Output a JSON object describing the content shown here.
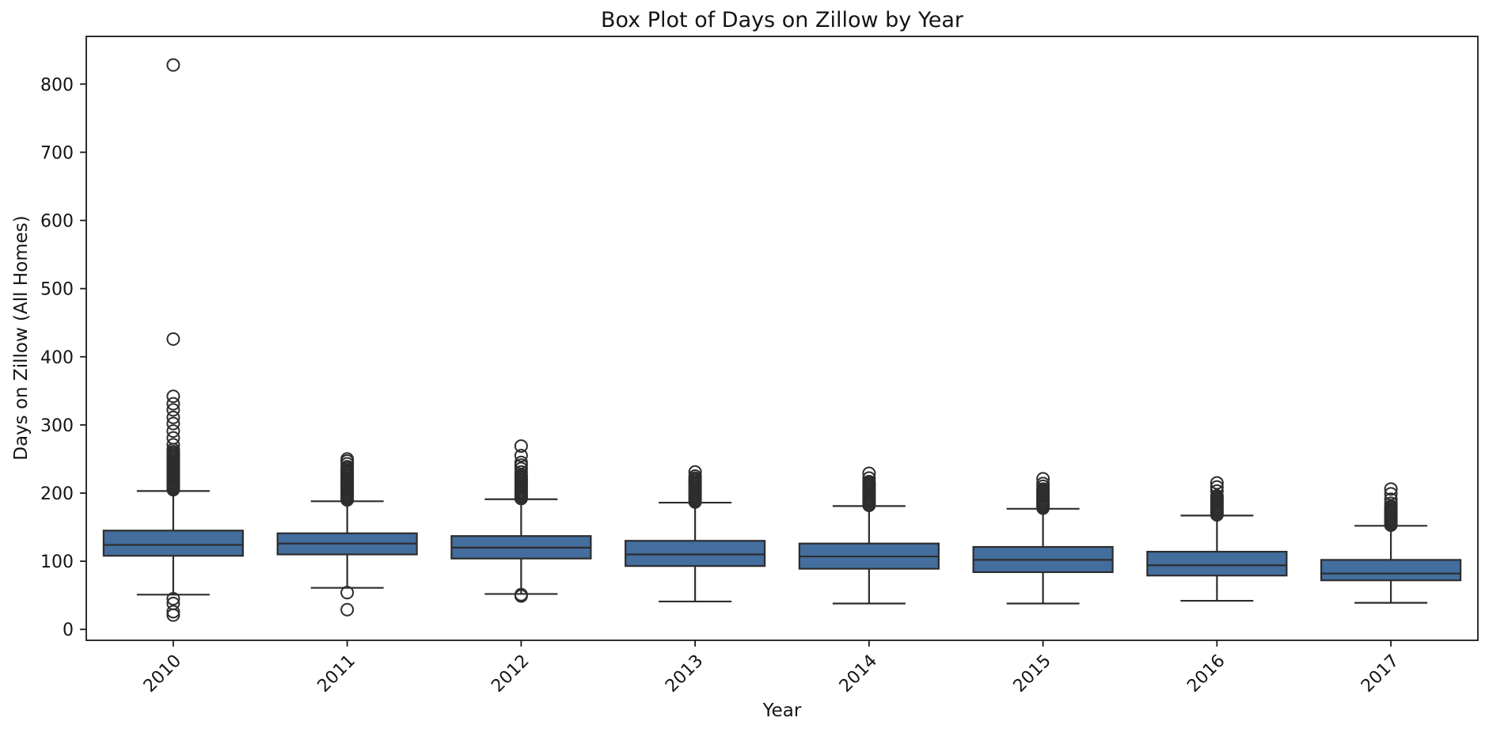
{
  "chart_data": {
    "type": "box",
    "title": "Box Plot of Days on Zillow by Year",
    "xlabel": "Year",
    "ylabel": "Days on Zillow (All Homes)",
    "categories": [
      "2010",
      "2011",
      "2012",
      "2013",
      "2014",
      "2015",
      "2016",
      "2017"
    ],
    "yticks": [
      0,
      100,
      200,
      300,
      400,
      500,
      600,
      700,
      800
    ],
    "ylim": [
      -16,
      870
    ],
    "grid": false,
    "legend": "none",
    "box_fill_color": "#436e9e",
    "line_color": "#2d2d2d",
    "spine_color": "#1a1a1a",
    "boxes": [
      {
        "category": "2010",
        "whisker_low": 51,
        "q1": 108,
        "median": 124,
        "q3": 145,
        "whisker_high": 203,
        "outliers_low": [
          45,
          38,
          26,
          21
        ],
        "outlier_cluster_high": {
          "min": 205,
          "max": 261
        },
        "outliers_high": [
          264,
          271,
          281,
          291,
          302,
          311,
          322,
          331,
          342,
          426,
          828
        ]
      },
      {
        "category": "2011",
        "whisker_low": 61,
        "q1": 110,
        "median": 126,
        "q3": 141,
        "whisker_high": 188,
        "outliers_low": [
          54,
          29
        ],
        "outlier_cluster_high": {
          "min": 190,
          "max": 240
        },
        "outliers_high": [
          243,
          247,
          250
        ]
      },
      {
        "category": "2012",
        "whisker_low": 52,
        "q1": 104,
        "median": 120,
        "q3": 137,
        "whisker_high": 191,
        "outliers_low": [
          51,
          49
        ],
        "outlier_cluster_high": {
          "min": 192,
          "max": 228
        },
        "outliers_high": [
          231,
          236,
          241,
          245,
          255,
          269
        ]
      },
      {
        "category": "2013",
        "whisker_low": 41,
        "q1": 93,
        "median": 110,
        "q3": 130,
        "whisker_high": 186,
        "outliers_low": [],
        "outlier_cluster_high": {
          "min": 187,
          "max": 222
        },
        "outliers_high": [
          225,
          231
        ]
      },
      {
        "category": "2014",
        "whisker_low": 38,
        "q1": 89,
        "median": 107,
        "q3": 126,
        "whisker_high": 181,
        "outliers_low": [],
        "outlier_cluster_high": {
          "min": 182,
          "max": 218
        },
        "outliers_high": [
          222,
          229
        ]
      },
      {
        "category": "2015",
        "whisker_low": 38,
        "q1": 84,
        "median": 102,
        "q3": 121,
        "whisker_high": 177,
        "outliers_low": [],
        "outlier_cluster_high": {
          "min": 178,
          "max": 206
        },
        "outliers_high": [
          210,
          214,
          221
        ]
      },
      {
        "category": "2016",
        "whisker_low": 42,
        "q1": 79,
        "median": 94,
        "q3": 114,
        "whisker_high": 167,
        "outliers_low": [],
        "outlier_cluster_high": {
          "min": 168,
          "max": 198
        },
        "outliers_high": [
          203,
          209,
          215
        ]
      },
      {
        "category": "2017",
        "whisker_low": 39,
        "q1": 72,
        "median": 82,
        "q3": 102,
        "whisker_high": 152,
        "outliers_low": [],
        "outlier_cluster_high": {
          "min": 153,
          "max": 181
        },
        "outliers_high": [
          185,
          191,
          199,
          206
        ]
      }
    ]
  }
}
